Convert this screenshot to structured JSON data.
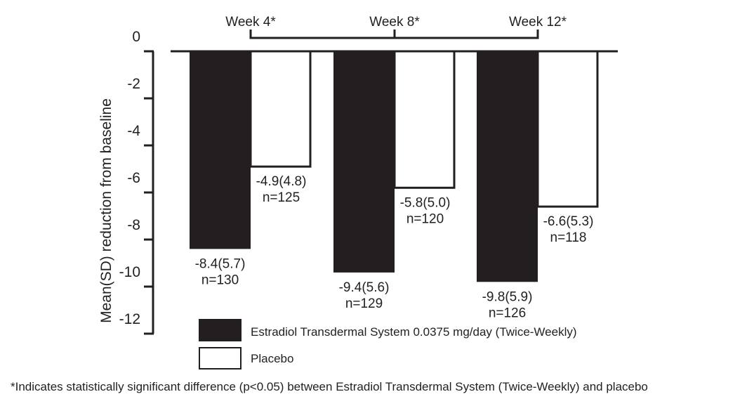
{
  "chart_data": {
    "type": "bar",
    "categories": [
      "Week 4*",
      "Week 8*",
      "Week 12*"
    ],
    "ylabel": "Mean(SD) reduction from baseline",
    "ylim": [
      -12,
      0
    ],
    "yticks": [
      "0",
      "-2",
      "-4",
      "-6",
      "-8",
      "-10",
      "-12"
    ],
    "grid": false,
    "legend_position": "bottom",
    "series": [
      {
        "name": "Estradiol Transdermal System 0.0375 mg/day (Twice-Weekly)",
        "color": "#231f20",
        "values": [
          -8.4,
          -9.4,
          -9.8
        ],
        "labels": [
          "-8.4(5.7)",
          "-9.4(5.6)",
          "-9.8(5.9)"
        ],
        "n": [
          "n=130",
          "n=129",
          "n=126"
        ]
      },
      {
        "name": "Placebo",
        "color": "#ffffff",
        "values": [
          -4.9,
          -5.8,
          -6.6
        ],
        "labels": [
          "-4.9(4.8)",
          "-5.8(5.0)",
          "-6.6(5.3)"
        ],
        "n": [
          "n=125",
          "n=120",
          "n=118"
        ]
      }
    ],
    "footnote": "*Indicates statistically significant difference (p<0.05) between Estradiol Transdermal System (Twice-Weekly) and placebo"
  }
}
